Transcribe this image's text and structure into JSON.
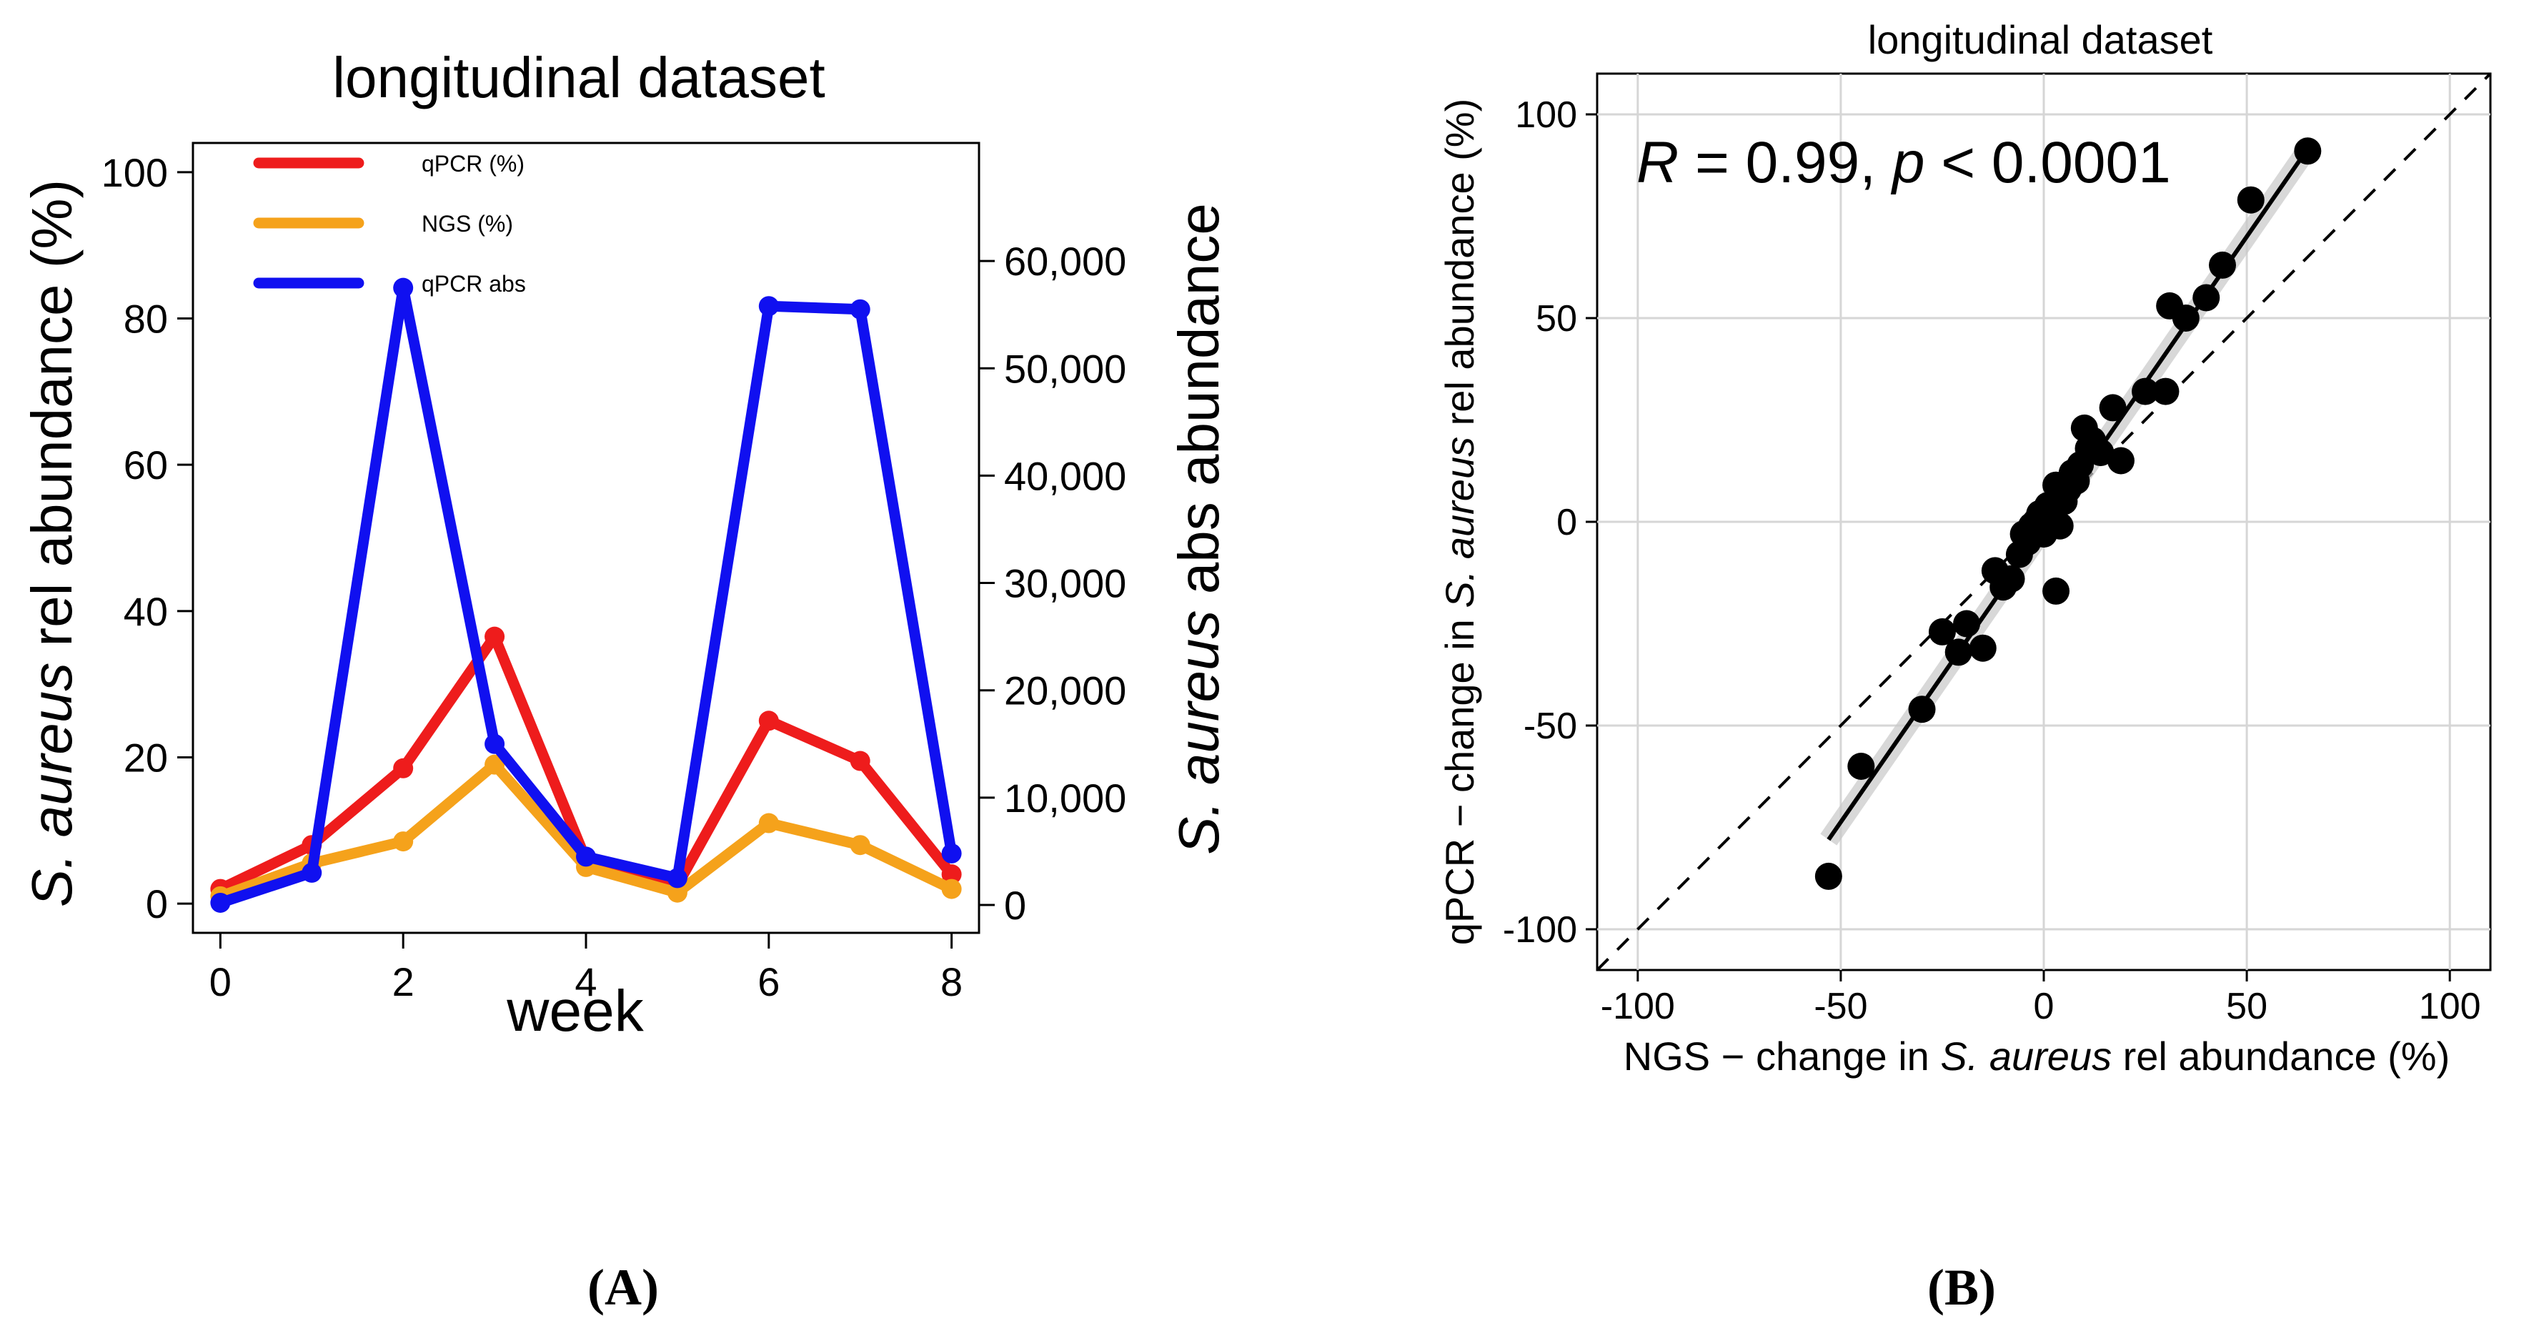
{
  "chart_data": [
    {
      "panel": "A",
      "type": "line",
      "title": "longitudinal dataset",
      "xlabel": "week",
      "ylabel_italic": "S. aureus",
      "ylabel_rest": " rel abundance (%)",
      "y2label_italic": "S. aureus",
      "y2label_rest": " abs abundance",
      "x_ticks": [
        "0",
        "2",
        "4",
        "6",
        "8"
      ],
      "y_ticks": [
        "0",
        "20",
        "40",
        "60",
        "80",
        "100"
      ],
      "y2_ticks": [
        "0",
        "10,000",
        "20,000",
        "30,000",
        "40,000",
        "50,000",
        "60,000"
      ],
      "xlim": [
        -0.3,
        8.3
      ],
      "ylim": [
        -4,
        104
      ],
      "y2lim": [
        -2600,
        71000
      ],
      "legend_position": "top-left",
      "series": [
        {
          "name": "qPCR (%)",
          "color": "#ee1c1c",
          "axis": "left",
          "x": [
            0,
            1,
            2,
            3,
            4,
            5,
            6,
            7,
            8
          ],
          "values": [
            2,
            8,
            18.5,
            36.5,
            6,
            2.5,
            25,
            19.5,
            4
          ]
        },
        {
          "name": "NGS (%)",
          "color": "#f5a21b",
          "axis": "left",
          "x": [
            0,
            1,
            2,
            3,
            4,
            5,
            6,
            7,
            8
          ],
          "values": [
            1,
            5.5,
            8.5,
            19,
            5,
            1.5,
            11,
            8,
            2
          ]
        },
        {
          "name": "qPCR abs",
          "color": "#1010f0",
          "axis": "right",
          "x": [
            0,
            1,
            2,
            3,
            4,
            5,
            6,
            7,
            8
          ],
          "values": [
            200,
            3000,
            57500,
            15000,
            4500,
            2500,
            55800,
            55500,
            4800
          ]
        }
      ],
      "caption": "(A)"
    },
    {
      "panel": "B",
      "type": "scatter",
      "title": "longitudinal dataset",
      "xlabel_pre": "NGS − change in ",
      "xlabel_italic": "S. aureus",
      "xlabel_post": " rel abundance (%)",
      "ylabel_pre": "qPCR − change in ",
      "ylabel_italic": "S. aureus",
      "ylabel_post": " rel abundance (%)",
      "x_ticks": [
        "-100",
        "-50",
        "0",
        "50",
        "100"
      ],
      "y_ticks": [
        "-100",
        "-50",
        "0",
        "50",
        "100"
      ],
      "xlim": [
        -110,
        110
      ],
      "ylim": [
        -110,
        110
      ],
      "grid": true,
      "annotation_R": "R",
      "annotation_mid": " = 0.99, ",
      "annotation_p": "p",
      "annotation_end": " < 0.0001",
      "identity_line": true,
      "fit_line": {
        "from": [
          -53,
          -78
        ],
        "to": [
          66,
          93
        ]
      },
      "points": [
        [
          -53,
          -87
        ],
        [
          -45,
          -60
        ],
        [
          -30,
          -46
        ],
        [
          -25,
          -27
        ],
        [
          -21,
          -32
        ],
        [
          -19,
          -25
        ],
        [
          -15,
          -31
        ],
        [
          -12,
          -12
        ],
        [
          -10,
          -16
        ],
        [
          -8,
          -14
        ],
        [
          -6,
          -8
        ],
        [
          -5,
          -3
        ],
        [
          -4,
          -5
        ],
        [
          -3,
          -1
        ],
        [
          -2,
          0
        ],
        [
          -1,
          2
        ],
        [
          0,
          -3
        ],
        [
          1,
          4
        ],
        [
          2,
          1
        ],
        [
          3,
          -17
        ],
        [
          3,
          9
        ],
        [
          4,
          -1
        ],
        [
          5,
          5
        ],
        [
          6,
          8
        ],
        [
          7,
          12
        ],
        [
          8,
          10
        ],
        [
          9,
          14
        ],
        [
          10,
          23
        ],
        [
          11,
          18
        ],
        [
          12,
          20
        ],
        [
          14,
          17
        ],
        [
          17,
          28
        ],
        [
          19,
          15
        ],
        [
          25,
          32
        ],
        [
          30,
          32
        ],
        [
          31,
          53
        ],
        [
          35,
          50
        ],
        [
          40,
          55
        ],
        [
          44,
          63
        ],
        [
          51,
          79
        ],
        [
          65,
          91
        ]
      ],
      "caption": "(B)"
    }
  ]
}
